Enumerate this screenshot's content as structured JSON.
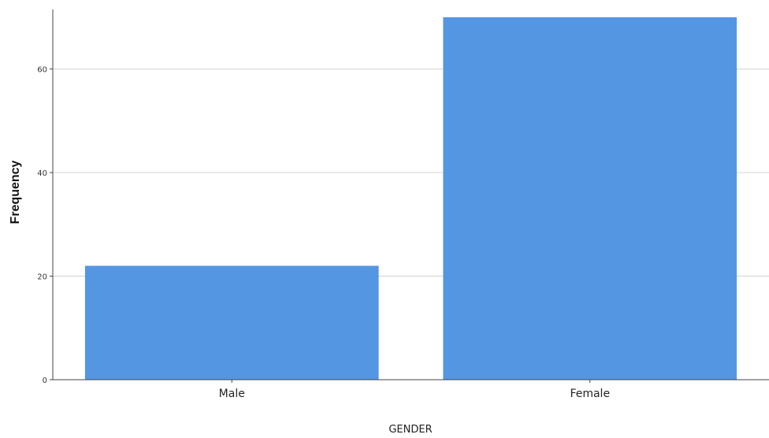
{
  "chart_data": {
    "type": "bar",
    "categories": [
      "Male",
      "Female"
    ],
    "values": [
      22,
      70
    ],
    "xlabel": "GENDER",
    "ylabel": "Frequency",
    "ylim": [
      0,
      71.5
    ],
    "yticks": [
      0,
      20,
      40,
      60
    ],
    "grid": true,
    "colors": {
      "bar": "#5596e2",
      "grid": "#d9d9d9",
      "axis": "#444444"
    }
  }
}
